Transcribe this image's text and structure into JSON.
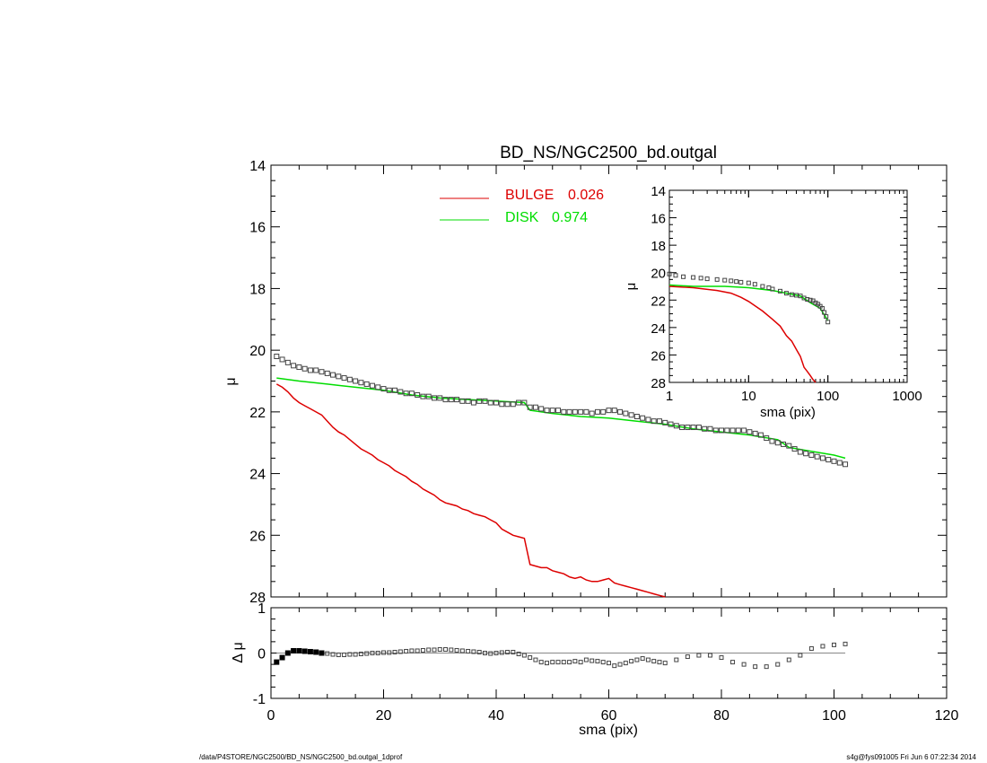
{
  "title": "BD_NS/NGC2500_bd.outgal",
  "footer": {
    "left": "/data/P4STORE/NGC2500/BD_NS/NGC2500_bd.outgal_1dprof",
    "right": "s4g@fys091005  Fri Jun  6 07:22:34 2014"
  },
  "colors": {
    "bulge": "#dd0000",
    "disk": "#00dd00",
    "data": "#444444",
    "axis": "#000000"
  },
  "chart_data": [
    {
      "type": "line",
      "panel": "main",
      "title": "BD_NS/NGC2500_bd.outgal",
      "xlabel": "",
      "ylabel": "μ",
      "xlim": [
        0,
        120
      ],
      "ylim": [
        28,
        14
      ],
      "y_inverted": true,
      "xticks": [],
      "yticks": [
        "14",
        "16",
        "18",
        "20",
        "22",
        "24",
        "26",
        "28"
      ],
      "legend": {
        "placement": "top-center",
        "entries": [
          {
            "label": "BULGE",
            "value": "0.026",
            "color": "#dd0000"
          },
          {
            "label": "DISK",
            "value": "0.974",
            "color": "#00dd00"
          }
        ]
      },
      "series": [
        {
          "name": "BULGE",
          "color": "#dd0000",
          "x": [
            1,
            2,
            3,
            4,
            5,
            6,
            7,
            8,
            9,
            10,
            11,
            12,
            13,
            14,
            15,
            16,
            17,
            18,
            19,
            20,
            21,
            22,
            23,
            24,
            25,
            26,
            27,
            28,
            29,
            30,
            31,
            32,
            33,
            34,
            35,
            36,
            37,
            38,
            39,
            40,
            41,
            42,
            43,
            44,
            45,
            46,
            47,
            48,
            49,
            50,
            51,
            52,
            53,
            54,
            55,
            56,
            57,
            58,
            59,
            60,
            61,
            62,
            63,
            64,
            65,
            66,
            67,
            68,
            69,
            70
          ],
          "y": [
            21.1,
            21.2,
            21.35,
            21.55,
            21.7,
            21.8,
            21.9,
            22.0,
            22.1,
            22.3,
            22.5,
            22.65,
            22.75,
            22.9,
            23.05,
            23.2,
            23.3,
            23.4,
            23.55,
            23.65,
            23.75,
            23.9,
            24.0,
            24.1,
            24.25,
            24.35,
            24.5,
            24.6,
            24.7,
            24.85,
            24.95,
            25.0,
            25.05,
            25.15,
            25.2,
            25.3,
            25.35,
            25.4,
            25.5,
            25.6,
            25.8,
            25.9,
            26.0,
            26.05,
            26.1,
            26.95,
            27.0,
            27.05,
            27.05,
            27.15,
            27.2,
            27.25,
            27.35,
            27.4,
            27.35,
            27.45,
            27.5,
            27.5,
            27.45,
            27.4,
            27.55,
            27.6,
            27.65,
            27.7,
            27.75,
            27.8,
            27.85,
            27.9,
            27.95,
            28.0
          ]
        },
        {
          "name": "DISK",
          "color": "#00dd00",
          "x": [
            1,
            5,
            10,
            15,
            20,
            25,
            30,
            35,
            40,
            45,
            46,
            50,
            55,
            60,
            65,
            70,
            75,
            80,
            85,
            90,
            92,
            95,
            100,
            102
          ],
          "y": [
            20.9,
            21.0,
            21.1,
            21.2,
            21.3,
            21.45,
            21.55,
            21.6,
            21.65,
            21.7,
            21.95,
            22.05,
            22.15,
            22.2,
            22.3,
            22.4,
            22.55,
            22.65,
            22.75,
            22.9,
            23.15,
            23.25,
            23.4,
            23.5
          ]
        },
        {
          "name": "data",
          "color": "#444444",
          "marker": "square",
          "x": [
            1,
            2,
            3,
            4,
            5,
            6,
            7,
            8,
            9,
            10,
            11,
            12,
            13,
            14,
            15,
            16,
            17,
            18,
            19,
            20,
            21,
            22,
            23,
            24,
            25,
            26,
            27,
            28,
            29,
            30,
            31,
            32,
            33,
            34,
            35,
            36,
            37,
            38,
            39,
            40,
            41,
            42,
            43,
            44,
            45,
            46,
            47,
            48,
            49,
            50,
            51,
            52,
            53,
            54,
            55,
            56,
            57,
            58,
            59,
            60,
            61,
            62,
            63,
            64,
            65,
            66,
            67,
            68,
            69,
            70,
            71,
            72,
            73,
            74,
            75,
            76,
            77,
            78,
            79,
            80,
            81,
            82,
            83,
            84,
            85,
            86,
            87,
            88,
            89,
            90,
            91,
            92,
            93,
            94,
            95,
            96,
            97,
            98,
            99,
            100,
            101,
            102
          ],
          "y": [
            20.2,
            20.3,
            20.4,
            20.5,
            20.55,
            20.6,
            20.65,
            20.65,
            20.7,
            20.75,
            20.8,
            20.85,
            20.9,
            20.95,
            21.0,
            21.05,
            21.1,
            21.15,
            21.2,
            21.25,
            21.3,
            21.3,
            21.35,
            21.4,
            21.4,
            21.45,
            21.5,
            21.5,
            21.55,
            21.55,
            21.6,
            21.6,
            21.6,
            21.65,
            21.65,
            21.7,
            21.65,
            21.65,
            21.7,
            21.7,
            21.75,
            21.75,
            21.75,
            21.7,
            21.7,
            21.85,
            21.85,
            21.9,
            21.95,
            21.95,
            21.95,
            22.0,
            22.0,
            22.0,
            22.0,
            22.0,
            22.05,
            22.0,
            22.0,
            21.95,
            21.95,
            22.0,
            22.05,
            22.1,
            22.15,
            22.2,
            22.25,
            22.3,
            22.3,
            22.35,
            22.4,
            22.45,
            22.5,
            22.5,
            22.5,
            22.5,
            22.55,
            22.55,
            22.6,
            22.6,
            22.6,
            22.6,
            22.6,
            22.6,
            22.65,
            22.7,
            22.75,
            22.85,
            22.95,
            23.0,
            23.05,
            23.1,
            23.2,
            23.3,
            23.35,
            23.4,
            23.45,
            23.5,
            23.55,
            23.6,
            23.65,
            23.7
          ]
        }
      ]
    },
    {
      "type": "scatter",
      "panel": "residual",
      "xlabel": "sma (pix)",
      "ylabel": "Δ μ",
      "xlim": [
        0,
        120
      ],
      "ylim": [
        -1,
        1
      ],
      "xticks": [
        "0",
        "20",
        "40",
        "60",
        "80",
        "100",
        "120"
      ],
      "yticks": [
        "-1",
        "0",
        "1"
      ],
      "zero_line": true,
      "series": [
        {
          "name": "residual",
          "color": "#444444",
          "marker": "square",
          "x": [
            1,
            2,
            3,
            4,
            5,
            6,
            7,
            8,
            9,
            10,
            11,
            12,
            13,
            14,
            15,
            16,
            17,
            18,
            19,
            20,
            21,
            22,
            23,
            24,
            25,
            26,
            27,
            28,
            29,
            30,
            31,
            32,
            33,
            34,
            35,
            36,
            37,
            38,
            39,
            40,
            41,
            42,
            43,
            44,
            45,
            46,
            47,
            48,
            49,
            50,
            51,
            52,
            53,
            54,
            55,
            56,
            57,
            58,
            59,
            60,
            61,
            62,
            63,
            64,
            65,
            66,
            67,
            68,
            69,
            70,
            72,
            74,
            76,
            78,
            80,
            82,
            84,
            86,
            88,
            90,
            92,
            94,
            96,
            98,
            100,
            102
          ],
          "y": [
            -0.2,
            -0.1,
            0.0,
            0.05,
            0.05,
            0.04,
            0.03,
            0.02,
            0.0,
            -0.01,
            -0.03,
            -0.04,
            -0.04,
            -0.03,
            -0.03,
            -0.02,
            -0.01,
            0.0,
            0.0,
            0.01,
            0.01,
            0.02,
            0.03,
            0.04,
            0.05,
            0.05,
            0.06,
            0.07,
            0.07,
            0.08,
            0.08,
            0.07,
            0.06,
            0.05,
            0.04,
            0.03,
            0.02,
            0.0,
            -0.01,
            0.0,
            0.01,
            0.02,
            0.02,
            -0.02,
            -0.05,
            -0.1,
            -0.15,
            -0.2,
            -0.22,
            -0.2,
            -0.2,
            -0.2,
            -0.2,
            -0.18,
            -0.2,
            -0.15,
            -0.17,
            -0.18,
            -0.2,
            -0.22,
            -0.28,
            -0.25,
            -0.22,
            -0.18,
            -0.15,
            -0.12,
            -0.15,
            -0.18,
            -0.2,
            -0.22,
            -0.15,
            -0.08,
            -0.05,
            -0.05,
            -0.1,
            -0.2,
            -0.25,
            -0.3,
            -0.3,
            -0.25,
            -0.15,
            -0.05,
            0.1,
            0.15,
            0.18,
            0.2
          ]
        }
      ]
    },
    {
      "type": "line",
      "panel": "inset",
      "xlabel": "sma (pix)",
      "ylabel": "μ",
      "x_scale": "log",
      "xlim": [
        1,
        1000
      ],
      "ylim": [
        28,
        14
      ],
      "y_inverted": true,
      "xticks": [
        "1",
        "10",
        "100",
        "1000"
      ],
      "yticks": [
        "14",
        "16",
        "18",
        "20",
        "22",
        "24",
        "26",
        "28"
      ],
      "series": [
        {
          "name": "BULGE",
          "color": "#dd0000",
          "x": [
            1.0,
            2,
            4,
            6,
            8,
            10,
            15,
            20,
            25,
            30,
            35,
            40,
            45,
            50,
            55,
            60,
            65,
            70
          ],
          "y": [
            21.0,
            21.1,
            21.3,
            21.5,
            21.8,
            22.1,
            22.8,
            23.4,
            23.9,
            24.6,
            25.0,
            25.6,
            26.1,
            26.9,
            27.2,
            27.5,
            27.8,
            28.0
          ]
        },
        {
          "name": "DISK",
          "color": "#00dd00",
          "x": [
            1.0,
            2,
            5,
            10,
            20,
            30,
            45,
            60,
            80,
            100
          ],
          "y": [
            20.9,
            21.0,
            21.0,
            21.1,
            21.3,
            21.5,
            21.7,
            22.2,
            22.6,
            23.5
          ]
        },
        {
          "name": "data",
          "color": "#444444",
          "marker": "square",
          "x": [
            1.0,
            1.2,
            1.5,
            2,
            2.5,
            3,
            4,
            5,
            6,
            7,
            8,
            10,
            12,
            15,
            18,
            20,
            25,
            30,
            35,
            40,
            45,
            50,
            55,
            60,
            65,
            70,
            75,
            80,
            85,
            90,
            95,
            100
          ],
          "y": [
            20.1,
            20.2,
            20.3,
            20.35,
            20.4,
            20.45,
            20.5,
            20.55,
            20.6,
            20.65,
            20.7,
            20.75,
            20.85,
            21.0,
            21.1,
            21.2,
            21.35,
            21.5,
            21.6,
            21.65,
            21.7,
            21.85,
            21.95,
            22.0,
            22.05,
            22.2,
            22.3,
            22.45,
            22.6,
            22.9,
            23.2,
            23.6
          ]
        }
      ]
    }
  ]
}
